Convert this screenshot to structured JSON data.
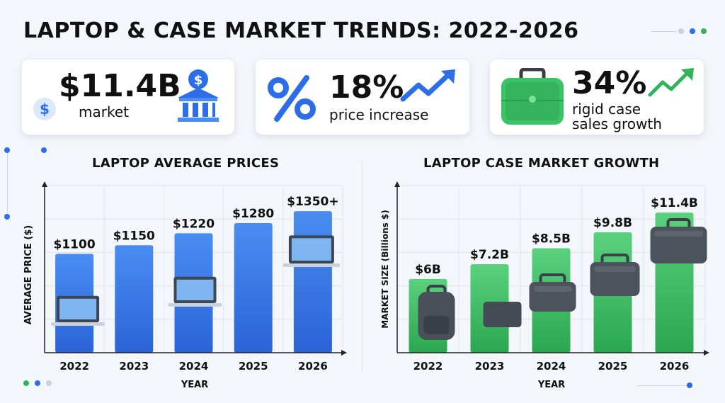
{
  "title": "LAPTOP & CASE MARKET TRENDS: 2022-2026",
  "stats": [
    {
      "value": "$11.4B",
      "label_lines": [
        "market"
      ],
      "icon": "bank-icon"
    },
    {
      "value": "18%",
      "label_lines": [
        "price increase"
      ],
      "icon": "trend-up-icon"
    },
    {
      "value": "34%",
      "label_lines": [
        "rigid case",
        "sales growth"
      ],
      "icon": "briefcase-icon"
    }
  ],
  "colors": {
    "blue": "#2f6fe0",
    "blue_light": "#4a8df2",
    "green": "#2fb45a",
    "green_light": "#5bd17d",
    "accent_blue": "#2d6ee8"
  },
  "chart_data": [
    {
      "type": "bar",
      "title": "LAPTOP AVERAGE PRICES",
      "xlabel": "YEAR",
      "ylabel": "AVERAGE PRICE ($)",
      "categories": [
        "2022",
        "2023",
        "2024",
        "2025",
        "2026"
      ],
      "values": [
        1100,
        1150,
        1220,
        1280,
        1350
      ],
      "data_labels": [
        "$1100",
        "$1150",
        "$1220",
        "$1280",
        "$1350+"
      ],
      "grid": true
    },
    {
      "type": "bar",
      "title": "LAPTOP CASE MARKET GROWTH",
      "xlabel": "YEAR",
      "ylabel": "MARKET SIZE (Billions $)",
      "categories": [
        "2022",
        "2023",
        "2024",
        "2025",
        "2026"
      ],
      "values": [
        6,
        7.2,
        8.5,
        9.8,
        11.4
      ],
      "data_labels": [
        "$6B",
        "$7.2B",
        "$8.5B",
        "$9.8B",
        "$11.4B"
      ],
      "grid": true
    }
  ]
}
